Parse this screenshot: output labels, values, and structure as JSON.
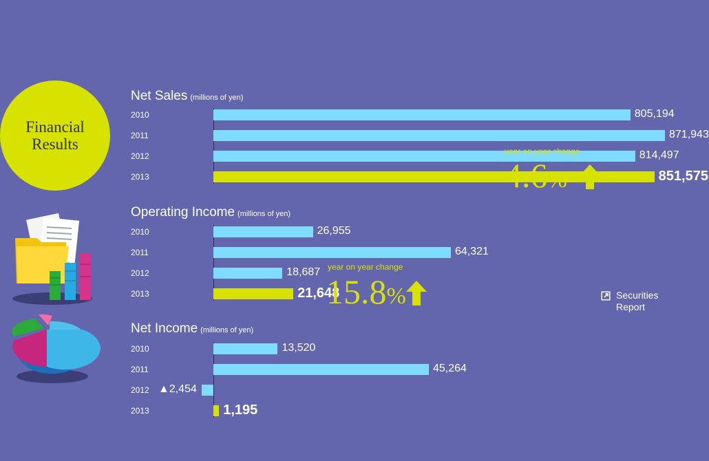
{
  "badge": {
    "line1": "Financial",
    "line2": "Results"
  },
  "colors": {
    "background": "#6366ad",
    "prior_bar": "#7fdcff",
    "current_bar": "#d7e200",
    "accent": "#d7e200"
  },
  "chart_data": [
    {
      "type": "bar",
      "orientation": "horizontal",
      "title": "Net Sales",
      "unit": "(millions of yen)",
      "categories": [
        "2010",
        "2011",
        "2012",
        "2013"
      ],
      "values": [
        805194,
        871943,
        814497,
        851575
      ],
      "labels": [
        "805,194",
        "871,943",
        "814,497",
        "851,575"
      ],
      "yoy": {
        "label": "year on year change",
        "value": "4.6",
        "symbol": "%",
        "direction": "up"
      }
    },
    {
      "type": "bar",
      "orientation": "horizontal",
      "title": "Operating Income",
      "unit": "(millions of yen)",
      "categories": [
        "2010",
        "2011",
        "2012",
        "2013"
      ],
      "values": [
        26955,
        64321,
        18687,
        21648
      ],
      "labels": [
        "26,955",
        "64,321",
        "18,687",
        "21,648"
      ],
      "yoy": {
        "label": "year on year change",
        "value": "15.8",
        "symbol": "%",
        "direction": "up"
      }
    },
    {
      "type": "bar",
      "orientation": "horizontal",
      "title": "Net Income",
      "unit": "(millions of yen)",
      "categories": [
        "2010",
        "2011",
        "2012",
        "2013"
      ],
      "values": [
        13520,
        45264,
        -2454,
        1195
      ],
      "labels": [
        "13,520",
        "45,264",
        "▲2,454",
        "1,195"
      ]
    }
  ],
  "link": {
    "line1": "Securities",
    "line2": "Report",
    "icon": "external-link-icon"
  }
}
